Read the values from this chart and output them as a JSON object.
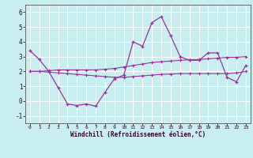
{
  "xlabel": "Windchill (Refroidissement éolien,°C)",
  "background_color": "#c8eef0",
  "line_color": "#993399",
  "grid_color": "#aadddd",
  "xlim": [
    -0.5,
    23.5
  ],
  "ylim": [
    -1.5,
    6.5
  ],
  "yticks": [
    -1,
    0,
    1,
    2,
    3,
    4,
    5,
    6
  ],
  "xticks": [
    0,
    1,
    2,
    3,
    4,
    5,
    6,
    7,
    8,
    9,
    10,
    11,
    12,
    13,
    14,
    15,
    16,
    17,
    18,
    19,
    20,
    21,
    22,
    23
  ],
  "x": [
    0,
    1,
    2,
    3,
    4,
    5,
    6,
    7,
    8,
    9,
    10,
    11,
    12,
    13,
    14,
    15,
    16,
    17,
    18,
    19,
    20,
    21,
    22,
    23
  ],
  "line1": [
    3.4,
    2.8,
    2.0,
    0.9,
    -0.2,
    -0.3,
    -0.2,
    -0.35,
    0.6,
    1.5,
    1.75,
    4.0,
    3.7,
    5.3,
    5.7,
    4.4,
    3.0,
    2.75,
    2.75,
    3.25,
    3.25,
    1.6,
    1.3,
    2.4
  ],
  "line2": [
    2.0,
    2.0,
    1.95,
    1.9,
    1.85,
    1.8,
    1.75,
    1.7,
    1.65,
    1.6,
    1.6,
    1.65,
    1.7,
    1.75,
    1.8,
    1.82,
    1.85,
    1.85,
    1.85,
    1.85,
    1.85,
    1.85,
    1.9,
    2.0
  ],
  "line3": [
    2.0,
    2.0,
    2.05,
    2.1,
    2.1,
    2.1,
    2.1,
    2.1,
    2.15,
    2.2,
    2.3,
    2.4,
    2.5,
    2.6,
    2.65,
    2.7,
    2.75,
    2.78,
    2.8,
    2.85,
    2.9,
    2.95,
    2.95,
    3.0
  ]
}
